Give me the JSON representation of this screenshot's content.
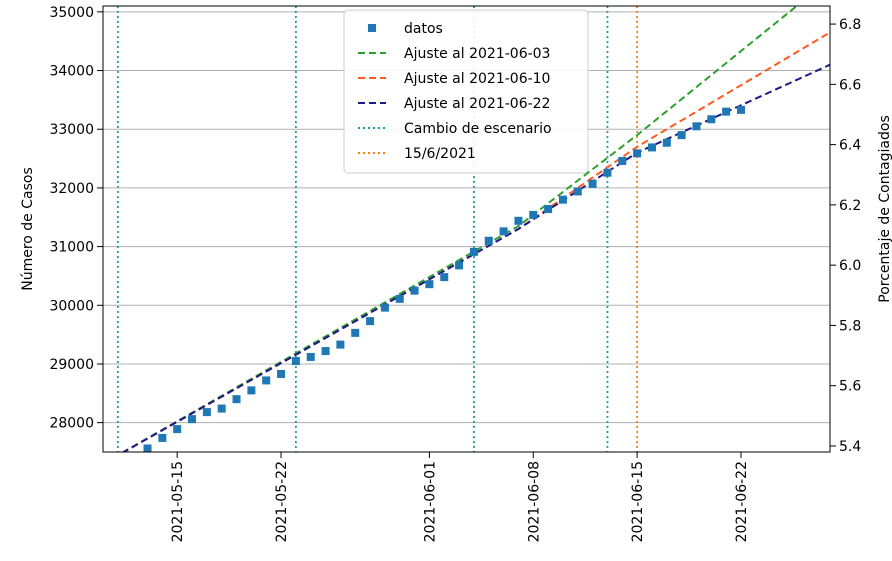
{
  "chart_data": {
    "type": "line",
    "title": "",
    "ylabel": "Número de Casos",
    "y2label": "Porcentaje de Contagiados",
    "x_range": [
      "2021-05-10",
      "2021-06-28"
    ],
    "ylim": [
      27500,
      35100
    ],
    "y2lim": [
      5.38,
      6.86
    ],
    "yticks": [
      28000,
      29000,
      30000,
      31000,
      32000,
      33000,
      34000,
      35000
    ],
    "y2ticks": [
      "5.4",
      "5.6",
      "5.8",
      "6.0",
      "6.2",
      "6.4",
      "6.6",
      "6.8"
    ],
    "xticks": [
      "2021-05-15",
      "2021-05-22",
      "2021-06-01",
      "2021-06-08",
      "2021-06-15",
      "2021-06-22"
    ],
    "grid": "horizontal",
    "legend_position": "top-center",
    "colors": {
      "datos": "#1f77b4",
      "fit_0603": "#2ca02c",
      "fit_0610": "#ff5a1f",
      "fit_0622": "#1a1a8c",
      "cambio": "#17a2a2",
      "marker_date": "#ff7f0e",
      "grid": "#b0b0b0"
    },
    "series": [
      {
        "name": "datos",
        "kind": "scatter",
        "points": [
          [
            "2021-05-13",
            27560
          ],
          [
            "2021-05-14",
            27740
          ],
          [
            "2021-05-15",
            27890
          ],
          [
            "2021-05-16",
            28060
          ],
          [
            "2021-05-17",
            28180
          ],
          [
            "2021-05-18",
            28240
          ],
          [
            "2021-05-19",
            28400
          ],
          [
            "2021-05-20",
            28550
          ],
          [
            "2021-05-21",
            28720
          ],
          [
            "2021-05-22",
            28830
          ],
          [
            "2021-05-23",
            29050
          ],
          [
            "2021-05-24",
            29120
          ],
          [
            "2021-05-25",
            29220
          ],
          [
            "2021-05-26",
            29330
          ],
          [
            "2021-05-27",
            29530
          ],
          [
            "2021-05-28",
            29730
          ],
          [
            "2021-05-29",
            29960
          ],
          [
            "2021-05-30",
            30110
          ],
          [
            "2021-05-31",
            30250
          ],
          [
            "2021-06-01",
            30360
          ],
          [
            "2021-06-02",
            30480
          ],
          [
            "2021-06-03",
            30680
          ],
          [
            "2021-06-04",
            30910
          ],
          [
            "2021-06-05",
            31100
          ],
          [
            "2021-06-06",
            31260
          ],
          [
            "2021-06-07",
            31440
          ],
          [
            "2021-06-08",
            31540
          ],
          [
            "2021-06-09",
            31640
          ],
          [
            "2021-06-10",
            31800
          ],
          [
            "2021-06-11",
            31940
          ],
          [
            "2021-06-12",
            32070
          ],
          [
            "2021-06-13",
            32260
          ],
          [
            "2021-06-14",
            32460
          ],
          [
            "2021-06-15",
            32590
          ],
          [
            "2021-06-16",
            32690
          ],
          [
            "2021-06-17",
            32770
          ],
          [
            "2021-06-18",
            32900
          ],
          [
            "2021-06-19",
            33050
          ],
          [
            "2021-06-20",
            33170
          ],
          [
            "2021-06-21",
            33300
          ],
          [
            "2021-06-22",
            33330
          ]
        ]
      },
      {
        "name": "Ajuste al 2021-06-03",
        "kind": "dashed-line",
        "points": [
          [
            "2021-05-10",
            27300
          ],
          [
            "2021-06-07",
            31350
          ],
          [
            "2021-06-15",
            32900
          ],
          [
            "2021-06-26",
            35150
          ]
        ]
      },
      {
        "name": "Ajuste al 2021-06-10",
        "kind": "dashed-line",
        "points": [
          [
            "2021-05-10",
            27300
          ],
          [
            "2021-06-07",
            31300
          ],
          [
            "2021-06-15",
            32700
          ],
          [
            "2021-06-28",
            34650
          ]
        ]
      },
      {
        "name": "Ajuste al 2021-06-22",
        "kind": "dashed-line",
        "points": [
          [
            "2021-05-10",
            27300
          ],
          [
            "2021-06-07",
            31300
          ],
          [
            "2021-06-15",
            32600
          ],
          [
            "2021-06-28",
            34100
          ]
        ]
      }
    ],
    "vlines": [
      {
        "name": "Cambio de escenario",
        "dates": [
          "2021-05-11",
          "2021-05-23",
          "2021-06-04",
          "2021-06-13"
        ]
      },
      {
        "name": "15/6/2021",
        "dates": [
          "2021-06-15"
        ]
      }
    ]
  }
}
